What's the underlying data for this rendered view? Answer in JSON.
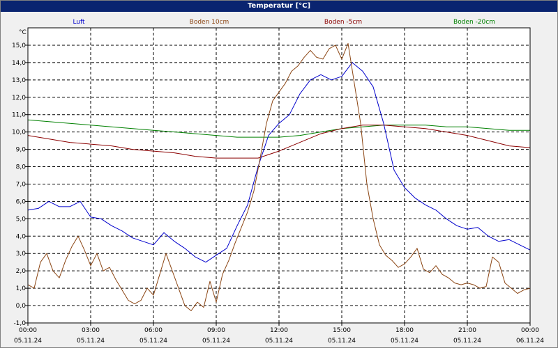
{
  "window": {
    "title": "Temperatur [°C]"
  },
  "chart_data": {
    "type": "line",
    "title": "Temperatur [°C]",
    "ylabel": "°C",
    "ylim": [
      -1.0,
      16.0
    ],
    "y_ticks": [
      "-1,0",
      "0,0",
      "1,0",
      "2,0",
      "3,0",
      "4,0",
      "5,0",
      "6,0",
      "7,0",
      "8,0",
      "9,0",
      "10,0",
      "11,0",
      "12,0",
      "13,0",
      "14,0",
      "15,0"
    ],
    "xlim": [
      0,
      24
    ],
    "x_ticks": [
      {
        "time": "00:00",
        "date": "05.11.24"
      },
      {
        "time": "03:00",
        "date": "05.11.24"
      },
      {
        "time": "06:00",
        "date": "05.11.24"
      },
      {
        "time": "09:00",
        "date": "05.11.24"
      },
      {
        "time": "12:00",
        "date": "05.11.24"
      },
      {
        "time": "15:00",
        "date": "05.11.24"
      },
      {
        "time": "18:00",
        "date": "05.11.24"
      },
      {
        "time": "21:00",
        "date": "05.11.24"
      },
      {
        "time": "00:00",
        "date": "06.11.24"
      }
    ],
    "grid": true,
    "legend_position": "top",
    "series": [
      {
        "name": "Luft",
        "color": "#0000cc",
        "x": [
          0,
          0.5,
          1,
          1.5,
          2,
          2.5,
          3,
          3.5,
          4,
          4.5,
          5,
          5.5,
          6,
          6.5,
          7,
          7.5,
          8,
          8.5,
          9,
          9.5,
          10,
          10.5,
          11,
          11.5,
          12,
          12.5,
          13,
          13.5,
          14,
          14.5,
          15,
          15.5,
          16,
          16.5,
          17,
          17.5,
          18,
          18.5,
          19,
          19.5,
          20,
          20.5,
          21,
          21.5,
          22,
          22.5,
          23,
          23.5,
          24
        ],
        "values": [
          5.5,
          5.6,
          6.0,
          5.7,
          5.7,
          6.0,
          5.1,
          5.0,
          4.6,
          4.3,
          3.9,
          3.7,
          3.5,
          4.2,
          3.7,
          3.3,
          2.8,
          2.5,
          2.9,
          3.3,
          4.6,
          5.8,
          8.0,
          9.8,
          10.5,
          11.0,
          12.2,
          13.0,
          13.3,
          13.0,
          13.2,
          14.0,
          13.5,
          12.6,
          10.5,
          7.8,
          6.8,
          6.2,
          5.8,
          5.5,
          5.0,
          4.6,
          4.4,
          4.5,
          4.0,
          3.7,
          3.8,
          3.5,
          3.2
        ]
      },
      {
        "name": "Boden 10cm",
        "color": "#8b4513",
        "x": [
          0,
          0.3,
          0.6,
          0.9,
          1.2,
          1.5,
          1.8,
          2.1,
          2.4,
          2.7,
          3,
          3.3,
          3.6,
          3.9,
          4.2,
          4.5,
          4.8,
          5.1,
          5.4,
          5.7,
          6,
          6.3,
          6.6,
          6.9,
          7.2,
          7.5,
          7.8,
          8.1,
          8.4,
          8.7,
          9,
          9.3,
          9.6,
          9.9,
          10.2,
          10.5,
          10.8,
          11.1,
          11.4,
          11.7,
          12,
          12.3,
          12.6,
          12.9,
          13.2,
          13.5,
          13.8,
          14.1,
          14.4,
          14.7,
          15,
          15.3,
          15.6,
          15.9,
          16.2,
          16.5,
          16.8,
          17.1,
          17.4,
          17.7,
          18,
          18.3,
          18.6,
          18.9,
          19.2,
          19.5,
          19.8,
          20.1,
          20.4,
          20.7,
          21,
          21.3,
          21.6,
          21.9,
          22.2,
          22.5,
          22.8,
          23.1,
          23.4,
          23.7,
          24
        ],
        "values": [
          1.2,
          1.0,
          2.5,
          3.0,
          2.0,
          1.6,
          2.6,
          3.4,
          4.0,
          3.2,
          2.3,
          3.0,
          2.0,
          2.2,
          1.5,
          0.9,
          0.3,
          0.1,
          0.3,
          1.0,
          0.6,
          1.8,
          3.0,
          2.0,
          1.0,
          0.0,
          -0.3,
          0.2,
          -0.1,
          1.4,
          0.2,
          1.8,
          2.6,
          3.6,
          4.5,
          5.4,
          6.6,
          8.5,
          10.5,
          11.8,
          12.3,
          12.8,
          13.5,
          13.8,
          14.3,
          14.7,
          14.3,
          14.2,
          14.8,
          15.0,
          14.2,
          15.1,
          12.8,
          10.5,
          7.0,
          5.0,
          3.5,
          2.9,
          2.6,
          2.2,
          2.4,
          2.8,
          3.3,
          2.1,
          1.9,
          2.3,
          1.8,
          1.6,
          1.3,
          1.2,
          1.3,
          1.2,
          1.0,
          1.1,
          2.8,
          2.5,
          1.3,
          1.0,
          0.7,
          0.9,
          1.0
        ]
      },
      {
        "name": "Boden -5cm",
        "color": "#8b0000",
        "x": [
          0,
          1,
          2,
          3,
          4,
          5,
          6,
          7,
          8,
          9,
          10,
          11,
          12,
          13,
          14,
          15,
          16,
          17,
          18,
          19,
          20,
          21,
          22,
          23,
          24
        ],
        "values": [
          9.8,
          9.6,
          9.4,
          9.3,
          9.2,
          9.0,
          8.9,
          8.8,
          8.6,
          8.5,
          8.5,
          8.5,
          8.9,
          9.4,
          9.9,
          10.2,
          10.4,
          10.4,
          10.3,
          10.2,
          10.0,
          9.8,
          9.5,
          9.2,
          9.1
        ]
      },
      {
        "name": "Boden -20cm",
        "color": "#008000",
        "x": [
          0,
          1,
          2,
          3,
          4,
          5,
          6,
          7,
          8,
          9,
          10,
          11,
          12,
          13,
          14,
          15,
          16,
          17,
          18,
          19,
          20,
          21,
          22,
          23,
          24
        ],
        "values": [
          10.7,
          10.6,
          10.5,
          10.4,
          10.3,
          10.2,
          10.1,
          10.0,
          9.9,
          9.8,
          9.7,
          9.7,
          9.7,
          9.8,
          10.0,
          10.2,
          10.3,
          10.4,
          10.4,
          10.4,
          10.3,
          10.3,
          10.2,
          10.1,
          10.1
        ]
      }
    ]
  }
}
